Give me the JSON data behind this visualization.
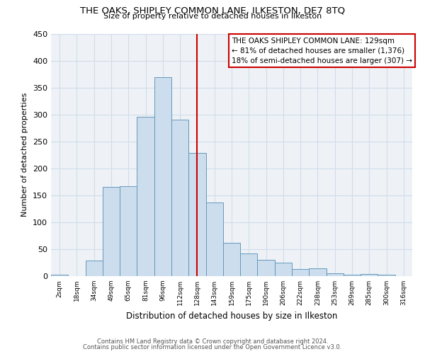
{
  "title": "THE OAKS, SHIPLEY COMMON LANE, ILKESTON, DE7 8TQ",
  "subtitle": "Size of property relative to detached houses in Ilkeston",
  "xlabel": "Distribution of detached houses by size in Ilkeston",
  "ylabel": "Number of detached properties",
  "bar_color": "#ccdded",
  "bar_edge_color": "#6699bb",
  "grid_color": "#d0dde8",
  "background_color": "#eef2f7",
  "tick_labels": [
    "2sqm",
    "18sqm",
    "34sqm",
    "49sqm",
    "65sqm",
    "81sqm",
    "96sqm",
    "112sqm",
    "128sqm",
    "143sqm",
    "159sqm",
    "175sqm",
    "190sqm",
    "206sqm",
    "222sqm",
    "238sqm",
    "253sqm",
    "269sqm",
    "285sqm",
    "300sqm",
    "316sqm"
  ],
  "bar_heights": [
    3,
    0,
    29,
    165,
    167,
    296,
    369,
    291,
    228,
    136,
    62,
    42,
    30,
    25,
    13,
    15,
    5,
    2,
    4,
    2,
    0
  ],
  "vline_x": 8,
  "vline_color": "#cc0000",
  "annotation_line1": "THE OAKS SHIPLEY COMMON LANE: 129sqm",
  "annotation_line2": "← 81% of detached houses are smaller (1,376)",
  "annotation_line3": "18% of semi-detached houses are larger (307) →",
  "ylim": [
    0,
    450
  ],
  "yticks": [
    0,
    50,
    100,
    150,
    200,
    250,
    300,
    350,
    400,
    450
  ],
  "footer1": "Contains HM Land Registry data © Crown copyright and database right 2024.",
  "footer2": "Contains public sector information licensed under the Open Government Licence v3.0."
}
